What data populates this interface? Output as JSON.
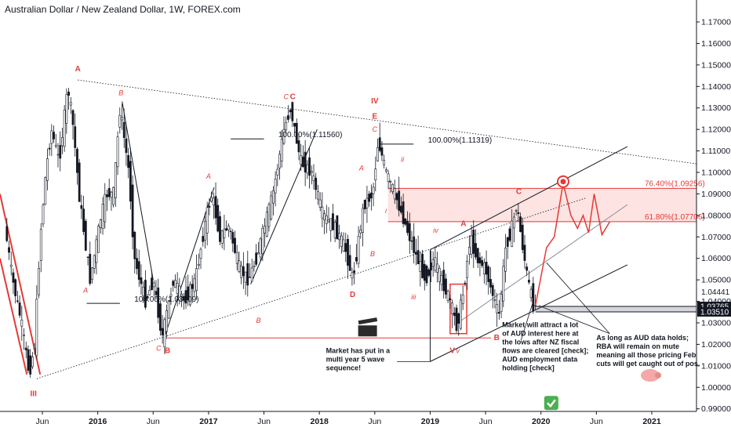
{
  "chart_data": {
    "type": "candlestick",
    "title": "Australian Dollar / New Zealand Dollar, 1W, FOREX.com",
    "ylim": [
      0.983,
      1.181
    ],
    "xlim": [
      2015.18,
      2021.45
    ],
    "y_ticks": [
      0.99,
      1.0,
      1.01,
      1.02,
      1.03,
      1.04,
      1.05,
      1.06,
      1.07,
      1.08,
      1.09,
      1.1,
      1.11,
      1.12,
      1.13,
      1.14,
      1.15,
      1.16,
      1.17
    ],
    "y_tick_labels": [
      "0.99000",
      "1.00000",
      "1.01000",
      "1.02000",
      "1.03000",
      "1.04000",
      "1.05000",
      "1.06000",
      "1.07000",
      "1.08000",
      "1.09000",
      "1.10000",
      "1.11000",
      "1.12000",
      "1.13000",
      "1.14000",
      "1.15000",
      "1.16000",
      "1.17000"
    ],
    "x_ticks": [
      {
        "x": 2015.5,
        "label": "Jun",
        "year": false
      },
      {
        "x": 2016.0,
        "label": "2016",
        "year": true
      },
      {
        "x": 2016.5,
        "label": "Jun",
        "year": false
      },
      {
        "x": 2017.0,
        "label": "2017",
        "year": true
      },
      {
        "x": 2017.5,
        "label": "Jun",
        "year": false
      },
      {
        "x": 2018.0,
        "label": "2018",
        "year": true
      },
      {
        "x": 2018.5,
        "label": "Jun",
        "year": false
      },
      {
        "x": 2019.0,
        "label": "2019",
        "year": true
      },
      {
        "x": 2019.5,
        "label": "Jun",
        "year": false
      },
      {
        "x": 2020.0,
        "label": "2020",
        "year": true
      },
      {
        "x": 2020.5,
        "label": "Jun",
        "year": false
      },
      {
        "x": 2021.0,
        "label": "2021",
        "year": true
      }
    ],
    "price_path": [
      [
        2015.18,
        1.075
      ],
      [
        2015.25,
        1.05
      ],
      [
        2015.33,
        1.03
      ],
      [
        2015.4,
        1.006
      ],
      [
        2015.45,
        1.02
      ],
      [
        2015.5,
        1.07
      ],
      [
        2015.55,
        1.1
      ],
      [
        2015.6,
        1.12
      ],
      [
        2015.67,
        1.105
      ],
      [
        2015.75,
        1.14
      ],
      [
        2015.8,
        1.12
      ],
      [
        2015.85,
        1.09
      ],
      [
        2015.95,
        1.05
      ],
      [
        2016.05,
        1.08
      ],
      [
        2016.1,
        1.09
      ],
      [
        2016.16,
        1.09
      ],
      [
        2016.22,
        1.13
      ],
      [
        2016.3,
        1.1
      ],
      [
        2016.35,
        1.06
      ],
      [
        2016.45,
        1.04
      ],
      [
        2016.52,
        1.05
      ],
      [
        2016.6,
        1.023
      ],
      [
        2016.7,
        1.05
      ],
      [
        2016.8,
        1.04
      ],
      [
        2016.9,
        1.05
      ],
      [
        2017.0,
        1.08
      ],
      [
        2017.05,
        1.09
      ],
      [
        2017.12,
        1.07
      ],
      [
        2017.2,
        1.075
      ],
      [
        2017.3,
        1.055
      ],
      [
        2017.38,
        1.05
      ],
      [
        2017.45,
        1.06
      ],
      [
        2017.5,
        1.07
      ],
      [
        2017.6,
        1.09
      ],
      [
        2017.7,
        1.12
      ],
      [
        2017.76,
        1.13
      ],
      [
        2017.85,
        1.105
      ],
      [
        2017.95,
        1.1
      ],
      [
        2018.05,
        1.08
      ],
      [
        2018.15,
        1.075
      ],
      [
        2018.25,
        1.065
      ],
      [
        2018.32,
        1.05
      ],
      [
        2018.42,
        1.085
      ],
      [
        2018.5,
        1.09
      ],
      [
        2018.55,
        1.115
      ],
      [
        2018.62,
        1.1
      ],
      [
        2018.7,
        1.09
      ],
      [
        2018.8,
        1.075
      ],
      [
        2018.9,
        1.06
      ],
      [
        2018.98,
        1.05
      ],
      [
        2019.05,
        1.06
      ],
      [
        2019.12,
        1.05
      ],
      [
        2019.2,
        1.04
      ],
      [
        2019.26,
        1.028
      ],
      [
        2019.32,
        1.045
      ],
      [
        2019.38,
        1.07
      ],
      [
        2019.44,
        1.06
      ],
      [
        2019.52,
        1.055
      ],
      [
        2019.6,
        1.04
      ],
      [
        2019.64,
        1.033
      ],
      [
        2019.7,
        1.065
      ],
      [
        2019.76,
        1.075
      ],
      [
        2019.8,
        1.085
      ],
      [
        2019.84,
        1.07
      ],
      [
        2019.9,
        1.05
      ],
      [
        2019.95,
        1.038
      ]
    ],
    "projection": [
      [
        2019.95,
        1.038
      ],
      [
        2020.05,
        1.065
      ],
      [
        2020.12,
        1.07
      ],
      [
        2020.2,
        1.095
      ],
      [
        2020.27,
        1.08
      ],
      [
        2020.33,
        1.074
      ],
      [
        2020.38,
        1.08
      ],
      [
        2020.43,
        1.072
      ],
      [
        2020.48,
        1.09
      ],
      [
        2020.55,
        1.071
      ],
      [
        2020.62,
        1.077
      ]
    ],
    "fib_levels": [
      {
        "label": "76.40%(1.09256)",
        "value": 1.09256
      },
      {
        "label": "61.80%(1.07706)",
        "value": 1.07706
      }
    ],
    "fib_ext_labels": [
      {
        "label": "100.00%(1.03909)",
        "value": 1.03909
      },
      {
        "label": "100.00%(1.11560)",
        "value": 1.1156
      },
      {
        "label": "100.00%(1.11319)",
        "value": 1.11319
      }
    ],
    "price_tags": [
      {
        "label": "1.04441",
        "value": 1.04441,
        "style": "plain"
      },
      {
        "label": "1.03765",
        "value": 1.03765,
        "style": "dark"
      },
      {
        "label": "1.03510",
        "value": 1.0351,
        "style": "dark"
      }
    ],
    "wave_labels": [
      {
        "text": "A",
        "x": 2015.82,
        "y": 1.147,
        "major": true
      },
      {
        "text": "III",
        "x": 2015.42,
        "y": 0.996,
        "major": true
      },
      {
        "text": "B",
        "x": 2016.21,
        "y": 1.136,
        "major": false
      },
      {
        "text": "A",
        "x": 2015.89,
        "y": 1.044,
        "major": false
      },
      {
        "text": "C",
        "x": 2016.55,
        "y": 1.017,
        "major": false
      },
      {
        "text": "B",
        "x": 2016.63,
        "y": 1.016,
        "major": true
      },
      {
        "text": "A",
        "x": 2017.0,
        "y": 1.097,
        "major": false
      },
      {
        "text": "B",
        "x": 2017.45,
        "y": 1.03,
        "major": false
      },
      {
        "text": "C",
        "x": 2017.7,
        "y": 1.134,
        "major": false
      },
      {
        "text": "C",
        "x": 2017.76,
        "y": 1.134,
        "major": true
      },
      {
        "text": "D",
        "x": 2018.3,
        "y": 1.042,
        "major": true
      },
      {
        "text": "IV",
        "x": 2018.5,
        "y": 1.132,
        "major": true
      },
      {
        "text": "E",
        "x": 2018.5,
        "y": 1.125,
        "major": true
      },
      {
        "text": "C",
        "x": 2018.5,
        "y": 1.119,
        "major": false
      },
      {
        "text": "A",
        "x": 2018.38,
        "y": 1.101,
        "major": false
      },
      {
        "text": "B",
        "x": 2018.48,
        "y": 1.061,
        "major": false
      },
      {
        "text": "ii",
        "x": 2018.75,
        "y": 1.105,
        "major": false
      },
      {
        "text": "i",
        "x": 2018.6,
        "y": 1.081,
        "major": false
      },
      {
        "text": "iii",
        "x": 2018.85,
        "y": 1.041,
        "major": false
      },
      {
        "text": "iv",
        "x": 2019.05,
        "y": 1.072,
        "major": false
      },
      {
        "text": "A",
        "x": 2019.3,
        "y": 1.075,
        "major": true
      },
      {
        "text": "C",
        "x": 2019.8,
        "y": 1.09,
        "major": true
      },
      {
        "text": "B",
        "x": 2019.6,
        "y": 1.022,
        "major": true
      },
      {
        "text": "V",
        "x": 2019.2,
        "y": 1.016,
        "major": true
      },
      {
        "text": "v",
        "x": 2019.25,
        "y": 1.016,
        "major": false
      }
    ],
    "annotations": [
      {
        "id": "wave5",
        "lines": [
          "Market has put in a",
          "multi year 5 wave",
          "sequence!"
        ]
      },
      {
        "id": "aud-interest",
        "lines": [
          "Market will attract a lot",
          "of AUD interest here at",
          "the lows after NZ fiscal",
          "flows are cleared [check];",
          "AUD employment data",
          "holding [check]"
        ]
      },
      {
        "id": "rba",
        "lines": [
          "As long as AUD data holds;",
          "RBA will remain on mute",
          "meaning all those pricing Feb",
          "cuts will get caught out of pos."
        ]
      }
    ],
    "colors": {
      "accent": "#e53935",
      "candle": "#131722",
      "zone": "#fde3e1",
      "grid": "#e0e3eb",
      "check": "#4caf50"
    }
  }
}
